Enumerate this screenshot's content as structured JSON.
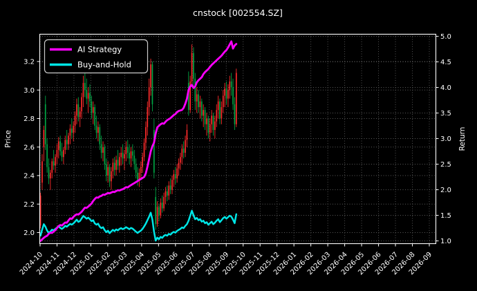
{
  "window": {
    "title": "cnstock [002554.SZ]"
  },
  "chart_data": {
    "type": "candlestick",
    "title": "cnstock [002554.SZ]",
    "ylabel_left": "Price",
    "ylabel_right": "Return",
    "yticks_left": [
      2.0,
      2.2,
      2.4,
      2.6,
      2.8,
      3.0,
      3.2
    ],
    "ylim_left": [
      1.93,
      3.39
    ],
    "yticks_right": [
      1.0,
      1.5,
      2.0,
      2.5,
      3.0,
      3.5,
      4.0,
      4.5,
      5.0
    ],
    "ylim_right": [
      0.95,
      5.03
    ],
    "x_tick_labels": [
      "2024-10",
      "2024-11",
      "2024-12",
      "2025-01",
      "2025-02",
      "2025-03",
      "2025-04",
      "2025-05",
      "2025-06",
      "2025-07",
      "2025-08",
      "2025-09",
      "2025-10",
      "2025-11",
      "2025-12",
      "2026-01",
      "2026-02",
      "2026-03",
      "2026-04",
      "2026-05",
      "2026-06",
      "2026-07",
      "2026-08",
      "2026-09"
    ],
    "grid": {
      "style": "dotted",
      "color": "#5c5c5c",
      "on": true
    },
    "background": "#000000",
    "text_color": "#ffffff",
    "legend": {
      "position": "upper left",
      "items": [
        {
          "label": "AI Strategy",
          "color": "#ff00ff"
        },
        {
          "label": "Buy-and-Hold",
          "color": "#00e6e6"
        }
      ]
    },
    "data_start_label": "2024-10",
    "data_end_label": "2025-09",
    "data_span_months": 11.57,
    "candles": {
      "up_color": "#ff2b2b",
      "down_color": "#00a444",
      "ohlc": [
        [
          2.05,
          2.28,
          2.03,
          2.26
        ],
        [
          2.35,
          2.55,
          2.3,
          2.5
        ],
        [
          2.6,
          2.75,
          2.5,
          2.72
        ],
        [
          2.9,
          2.96,
          2.58,
          2.62
        ],
        [
          2.62,
          2.66,
          2.42,
          2.46
        ],
        [
          2.46,
          2.52,
          2.34,
          2.38
        ],
        [
          2.38,
          2.44,
          2.3,
          2.42
        ],
        [
          2.42,
          2.52,
          2.38,
          2.5
        ],
        [
          2.5,
          2.58,
          2.44,
          2.47
        ],
        [
          2.47,
          2.55,
          2.42,
          2.53
        ],
        [
          2.53,
          2.62,
          2.48,
          2.58
        ],
        [
          2.58,
          2.67,
          2.52,
          2.64
        ],
        [
          2.64,
          2.68,
          2.54,
          2.57
        ],
        [
          2.57,
          2.63,
          2.5,
          2.53
        ],
        [
          2.53,
          2.6,
          2.48,
          2.58
        ],
        [
          2.58,
          2.68,
          2.55,
          2.65
        ],
        [
          2.65,
          2.72,
          2.58,
          2.62
        ],
        [
          2.62,
          2.7,
          2.58,
          2.68
        ],
        [
          2.68,
          2.76,
          2.62,
          2.73
        ],
        [
          2.73,
          2.8,
          2.66,
          2.7
        ],
        [
          2.7,
          2.78,
          2.64,
          2.75
        ],
        [
          2.75,
          2.85,
          2.7,
          2.82
        ],
        [
          2.82,
          2.94,
          2.76,
          2.9
        ],
        [
          2.9,
          2.95,
          2.78,
          2.81
        ],
        [
          2.81,
          2.88,
          2.74,
          2.85
        ],
        [
          2.85,
          2.98,
          2.8,
          2.95
        ],
        [
          2.95,
          3.1,
          2.88,
          3.05
        ],
        [
          3.05,
          3.16,
          2.95,
          3.0
        ],
        [
          3.0,
          3.08,
          2.9,
          2.94
        ],
        [
          2.94,
          3.02,
          2.84,
          2.98
        ],
        [
          2.98,
          3.04,
          2.88,
          2.92
        ],
        [
          2.92,
          2.96,
          2.8,
          2.84
        ],
        [
          2.84,
          2.92,
          2.76,
          2.88
        ],
        [
          2.88,
          2.9,
          2.72,
          2.75
        ],
        [
          2.75,
          2.82,
          2.66,
          2.7
        ],
        [
          2.7,
          2.78,
          2.64,
          2.74
        ],
        [
          2.74,
          2.76,
          2.58,
          2.62
        ],
        [
          2.62,
          2.68,
          2.52,
          2.56
        ],
        [
          2.56,
          2.64,
          2.5,
          2.6
        ],
        [
          2.6,
          2.62,
          2.44,
          2.48
        ],
        [
          2.48,
          2.52,
          2.36,
          2.4
        ],
        [
          2.4,
          2.5,
          2.35,
          2.46
        ],
        [
          2.46,
          2.48,
          2.32,
          2.36
        ],
        [
          2.36,
          2.46,
          2.3,
          2.43
        ],
        [
          2.43,
          2.52,
          2.38,
          2.49
        ],
        [
          2.49,
          2.53,
          2.4,
          2.44
        ],
        [
          2.44,
          2.54,
          2.4,
          2.51
        ],
        [
          2.51,
          2.58,
          2.44,
          2.47
        ],
        [
          2.47,
          2.56,
          2.42,
          2.53
        ],
        [
          2.53,
          2.6,
          2.47,
          2.56
        ],
        [
          2.56,
          2.62,
          2.48,
          2.52
        ],
        [
          2.52,
          2.58,
          2.44,
          2.55
        ],
        [
          2.55,
          2.64,
          2.5,
          2.6
        ],
        [
          2.6,
          2.65,
          2.52,
          2.56
        ],
        [
          2.56,
          2.62,
          2.48,
          2.52
        ],
        [
          2.52,
          2.6,
          2.46,
          2.57
        ],
        [
          2.57,
          2.62,
          2.5,
          2.54
        ],
        [
          2.54,
          2.58,
          2.44,
          2.48
        ],
        [
          2.48,
          2.52,
          2.38,
          2.42
        ],
        [
          2.42,
          2.46,
          2.33,
          2.37
        ],
        [
          2.37,
          2.45,
          2.32,
          2.42
        ],
        [
          2.42,
          2.5,
          2.38,
          2.46
        ],
        [
          2.46,
          2.56,
          2.42,
          2.53
        ],
        [
          2.53,
          2.66,
          2.5,
          2.63
        ],
        [
          2.63,
          2.78,
          2.58,
          2.74
        ],
        [
          2.74,
          2.92,
          2.68,
          2.88
        ],
        [
          2.88,
          3.08,
          2.82,
          3.02
        ],
        [
          3.02,
          3.22,
          2.96,
          3.18
        ],
        [
          3.18,
          3.2,
          2.85,
          2.9
        ],
        [
          2.72,
          2.8,
          2.38,
          2.42
        ],
        [
          2.25,
          2.32,
          2.02,
          2.06
        ],
        [
          2.06,
          2.22,
          2.04,
          2.18
        ],
        [
          2.18,
          2.2,
          2.08,
          2.12
        ],
        [
          2.12,
          2.24,
          2.1,
          2.21
        ],
        [
          2.21,
          2.26,
          2.14,
          2.17
        ],
        [
          2.17,
          2.28,
          2.15,
          2.25
        ],
        [
          2.25,
          2.32,
          2.2,
          2.29
        ],
        [
          2.29,
          2.33,
          2.22,
          2.26
        ],
        [
          2.26,
          2.36,
          2.23,
          2.33
        ],
        [
          2.33,
          2.38,
          2.27,
          2.3
        ],
        [
          2.3,
          2.4,
          2.27,
          2.37
        ],
        [
          2.37,
          2.44,
          2.32,
          2.41
        ],
        [
          2.41,
          2.46,
          2.34,
          2.38
        ],
        [
          2.38,
          2.48,
          2.35,
          2.45
        ],
        [
          2.45,
          2.52,
          2.4,
          2.49
        ],
        [
          2.49,
          2.56,
          2.44,
          2.53
        ],
        [
          2.53,
          2.62,
          2.48,
          2.59
        ],
        [
          2.59,
          2.64,
          2.52,
          2.56
        ],
        [
          2.56,
          2.68,
          2.53,
          2.65
        ],
        [
          2.65,
          2.76,
          2.6,
          2.72
        ],
        [
          3.05,
          3.13,
          2.82,
          2.86
        ],
        [
          2.86,
          3.1,
          2.84,
          3.06
        ],
        [
          3.06,
          3.32,
          3.02,
          3.26
        ],
        [
          3.26,
          3.3,
          3.02,
          3.08
        ],
        [
          3.08,
          3.12,
          2.86,
          2.92
        ],
        [
          2.92,
          3.02,
          2.84,
          2.97
        ],
        [
          2.97,
          3.0,
          2.84,
          2.88
        ],
        [
          2.88,
          2.96,
          2.8,
          2.92
        ],
        [
          2.92,
          2.94,
          2.78,
          2.82
        ],
        [
          2.82,
          2.9,
          2.74,
          2.86
        ],
        [
          2.86,
          2.88,
          2.72,
          2.76
        ],
        [
          2.76,
          2.84,
          2.68,
          2.8
        ],
        [
          2.8,
          2.82,
          2.66,
          2.7
        ],
        [
          2.7,
          2.8,
          2.64,
          2.76
        ],
        [
          2.76,
          2.86,
          2.7,
          2.82
        ],
        [
          2.82,
          2.84,
          2.68,
          2.72
        ],
        [
          2.72,
          2.82,
          2.66,
          2.78
        ],
        [
          2.78,
          2.9,
          2.74,
          2.86
        ],
        [
          2.86,
          2.96,
          2.8,
          2.92
        ],
        [
          2.92,
          2.94,
          2.76,
          2.8
        ],
        [
          2.8,
          2.92,
          2.76,
          2.88
        ],
        [
          2.88,
          3.0,
          2.84,
          2.96
        ],
        [
          2.96,
          3.05,
          2.88,
          3.01
        ],
        [
          3.01,
          3.06,
          2.9,
          2.94
        ],
        [
          2.94,
          3.04,
          2.88,
          3.0
        ],
        [
          3.0,
          3.1,
          2.94,
          3.06
        ],
        [
          3.06,
          3.12,
          2.96,
          3.02
        ],
        [
          3.02,
          3.08,
          2.86,
          2.9
        ],
        [
          2.9,
          2.95,
          2.72,
          2.76
        ],
        [
          2.76,
          3.15,
          2.74,
          3.12
        ]
      ]
    },
    "series": [
      {
        "name": "AI Strategy",
        "axis": "right",
        "color": "#ff00ff",
        "linewidth": 2.8,
        "values": [
          1.0,
          1.03,
          1.06,
          1.085,
          1.1,
          1.14,
          1.16,
          1.155,
          1.185,
          1.21,
          1.25,
          1.29,
          1.31,
          1.3,
          1.33,
          1.36,
          1.355,
          1.4,
          1.44,
          1.43,
          1.47,
          1.5,
          1.52,
          1.515,
          1.54,
          1.57,
          1.61,
          1.65,
          1.645,
          1.67,
          1.7,
          1.73,
          1.78,
          1.82,
          1.85,
          1.845,
          1.87,
          1.88,
          1.905,
          1.9,
          1.92,
          1.935,
          1.93,
          1.945,
          1.96,
          1.955,
          1.975,
          1.99,
          1.985,
          2.0,
          2.01,
          2.03,
          2.05,
          2.045,
          2.07,
          2.09,
          2.11,
          2.13,
          2.15,
          2.17,
          2.19,
          2.21,
          2.23,
          2.25,
          2.32,
          2.45,
          2.6,
          2.75,
          2.85,
          2.92,
          3.1,
          3.22,
          3.25,
          3.28,
          3.3,
          3.29,
          3.33,
          3.36,
          3.38,
          3.4,
          3.43,
          3.46,
          3.48,
          3.52,
          3.54,
          3.55,
          3.56,
          3.6,
          3.68,
          3.78,
          3.95,
          4.02,
          4.05,
          3.99,
          4.02,
          4.1,
          4.14,
          4.17,
          4.2,
          4.26,
          4.3,
          4.33,
          4.36,
          4.4,
          4.44,
          4.47,
          4.5,
          4.53,
          4.56,
          4.59,
          4.62,
          4.66,
          4.7,
          4.73,
          4.78,
          4.84,
          4.9,
          4.76,
          4.82,
          4.85
        ]
      },
      {
        "name": "Buy-and-Hold",
        "axis": "right",
        "color": "#00e6e6",
        "linewidth": 2.5,
        "values": [
          1.102,
          1.22,
          1.327,
          1.278,
          1.2,
          1.161,
          1.18,
          1.22,
          1.205,
          1.234,
          1.259,
          1.288,
          1.254,
          1.234,
          1.259,
          1.293,
          1.278,
          1.307,
          1.332,
          1.317,
          1.341,
          1.376,
          1.415,
          1.371,
          1.39,
          1.439,
          1.488,
          1.463,
          1.434,
          1.454,
          1.424,
          1.385,
          1.405,
          1.341,
          1.317,
          1.337,
          1.278,
          1.249,
          1.268,
          1.21,
          1.171,
          1.2,
          1.151,
          1.185,
          1.215,
          1.19,
          1.224,
          1.205,
          1.234,
          1.249,
          1.229,
          1.244,
          1.268,
          1.249,
          1.229,
          1.254,
          1.239,
          1.21,
          1.18,
          1.156,
          1.18,
          1.2,
          1.234,
          1.283,
          1.337,
          1.405,
          1.473,
          1.551,
          1.415,
          1.18,
          1.005,
          1.063,
          1.034,
          1.078,
          1.059,
          1.098,
          1.117,
          1.102,
          1.137,
          1.122,
          1.156,
          1.176,
          1.161,
          1.195,
          1.215,
          1.234,
          1.263,
          1.249,
          1.293,
          1.327,
          1.395,
          1.493,
          1.59,
          1.502,
          1.424,
          1.449,
          1.405,
          1.424,
          1.376,
          1.395,
          1.346,
          1.366,
          1.317,
          1.346,
          1.376,
          1.327,
          1.356,
          1.395,
          1.424,
          1.366,
          1.405,
          1.444,
          1.468,
          1.434,
          1.463,
          1.493,
          1.473,
          1.415,
          1.346,
          1.522
        ]
      }
    ]
  }
}
